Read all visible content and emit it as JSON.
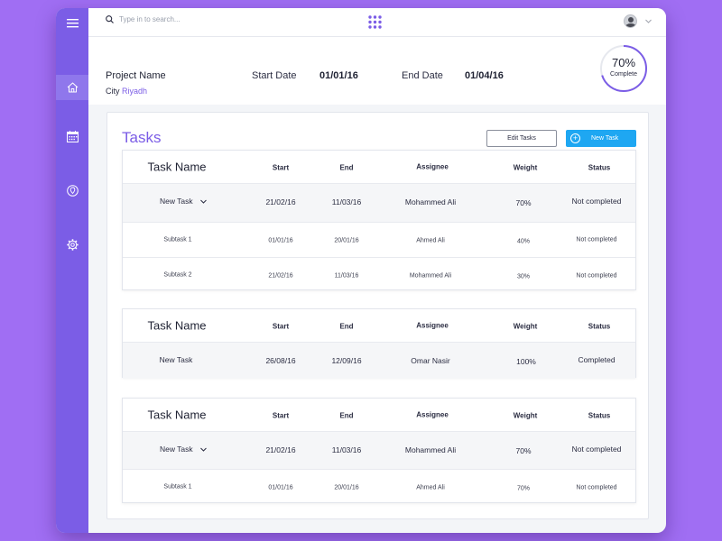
{
  "search": {
    "placeholder": "Type in to search..."
  },
  "project": {
    "name_label": "Project Name",
    "city_label": "City",
    "city_value": "Riyadh",
    "start_label": "Start Date",
    "start_value": "01/01/16",
    "end_label": "End Date",
    "end_value": "01/04/16",
    "progress_text": "70%",
    "progress_label": "Complete",
    "progress_value": 0.7
  },
  "colors": {
    "accent": "#7b5de6",
    "primary_button": "#1ea7f2",
    "background": "#a06ef3"
  },
  "sidebar_icons": [
    "menu-icon",
    "home-icon",
    "calendar-icon",
    "location-icon",
    "settings-icon"
  ],
  "tasks": {
    "title": "Tasks",
    "edit_label": "Edit Tasks",
    "new_label": "New Task",
    "columns": [
      "Task Name",
      "Start",
      "End",
      "Assignee",
      "Weight",
      "Status"
    ],
    "groups": [
      {
        "rows": [
          {
            "name": "New Task",
            "start": "21/02/16",
            "end": "11/03/16",
            "assignee": "Mohammed Ali",
            "weight": "70%",
            "status": "Not completed"
          },
          {
            "name": "Subtask 1",
            "start": "01/01/16",
            "end": "20/01/16",
            "assignee": "Ahmed Ali",
            "weight": "40%",
            "status": "Not completed"
          },
          {
            "name": "Subtask 2",
            "start": "21/02/16",
            "end": "11/03/16",
            "assignee": "Mohammed Ali",
            "weight": "30%",
            "status": "Not completed"
          }
        ]
      },
      {
        "rows": [
          {
            "name": "New Task",
            "start": "26/08/16",
            "end": "12/09/16",
            "assignee": "Omar Nasir",
            "weight": "100%",
            "status": "Completed"
          }
        ]
      },
      {
        "rows": [
          {
            "name": "New Task",
            "start": "21/02/16",
            "end": "11/03/16",
            "assignee": "Mohammed Ali",
            "weight": "70%",
            "status": "Not completed"
          },
          {
            "name": "Subtask 1",
            "start": "01/01/16",
            "end": "20/01/16",
            "assignee": "Ahmed Ali",
            "weight": "70%",
            "status": "Not completed"
          }
        ]
      }
    ]
  }
}
